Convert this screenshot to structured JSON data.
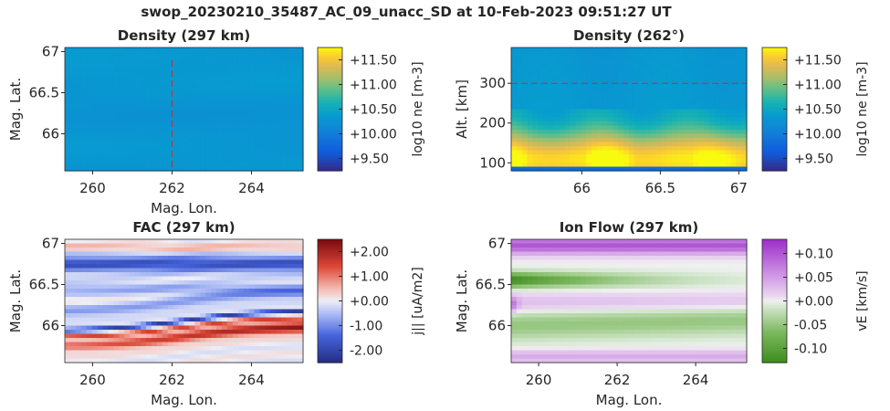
{
  "figure": {
    "title": "swop_20230210_35487_AC_09_unacc_SD at 10-Feb-2023 09:51:27 UT"
  },
  "chart_data": [
    {
      "type": "heatmap",
      "title": "Density (297 km)",
      "xlabel": "Mag. Lon.",
      "ylabel": "Mag. Lat.",
      "xlim": [
        259.3,
        265.3
      ],
      "ylim": [
        65.55,
        67.05
      ],
      "xticks": [
        "260",
        "262",
        "264"
      ],
      "yticks": [
        "66",
        "66.5",
        "67"
      ],
      "colorbar": {
        "label": "log10 ne [m-3]",
        "ticks": [
          "+9.50",
          "+10.00",
          "+10.50",
          "+11.00",
          "+11.50"
        ],
        "range": [
          9.25,
          11.75
        ],
        "colormap": "parula"
      },
      "marker_line": {
        "orientation": "vertical",
        "value": 262,
        "color": "#d62728",
        "style": "dashed"
      },
      "value_range": [
        10.2,
        10.4
      ]
    },
    {
      "type": "heatmap",
      "title": "Density (262°)",
      "xlabel": "",
      "ylabel": "Alt. [km]",
      "xlim": [
        65.55,
        67.05
      ],
      "ylim": [
        80,
        390
      ],
      "xticks": [
        "66",
        "66.5",
        "67"
      ],
      "yticks": [
        "100",
        "200",
        "300"
      ],
      "colorbar": {
        "label": "log10 ne [m-3]",
        "ticks": [
          "+9.50",
          "+10.00",
          "+10.50",
          "+11.00",
          "+11.50"
        ],
        "range": [
          9.25,
          11.75
        ],
        "colormap": "parula"
      },
      "marker_line": {
        "orientation": "horizontal",
        "value": 300,
        "color": "#d62728",
        "style": "dashed"
      },
      "value_range": [
        9.3,
        11.8
      ]
    },
    {
      "type": "heatmap",
      "title": "FAC (297 km)",
      "xlabel": "Mag. Lon.",
      "ylabel": "Mag. Lat.",
      "xlim": [
        259.3,
        265.3
      ],
      "ylim": [
        65.55,
        67.05
      ],
      "xticks": [
        "260",
        "262",
        "264"
      ],
      "yticks": [
        "66",
        "66.5",
        "67"
      ],
      "colorbar": {
        "label": "j|| [uA/m2]",
        "ticks": [
          "-2.00",
          "-1.00",
          "+0.00",
          "+1.00",
          "+2.00"
        ],
        "range": [
          -2.5,
          2.5
        ],
        "colormap": "blue-white-red"
      },
      "value_range": [
        -2.3,
        2.3
      ]
    },
    {
      "type": "heatmap",
      "title": "Ion Flow (297 km)",
      "xlabel": "Mag. Lon.",
      "ylabel": "Mag. Lat.",
      "xlim": [
        259.3,
        265.3
      ],
      "ylim": [
        65.55,
        67.05
      ],
      "xticks": [
        "260",
        "262",
        "264"
      ],
      "yticks": [
        "66",
        "66.5",
        "67"
      ],
      "colorbar": {
        "label": "vE [km/s]",
        "ticks": [
          "-0.10",
          "-0.05",
          "+0.00",
          "+0.05",
          "+0.10"
        ],
        "range": [
          -0.13,
          0.13
        ],
        "colormap": "green-white-purple"
      },
      "value_range": [
        -0.1,
        0.11
      ]
    }
  ]
}
